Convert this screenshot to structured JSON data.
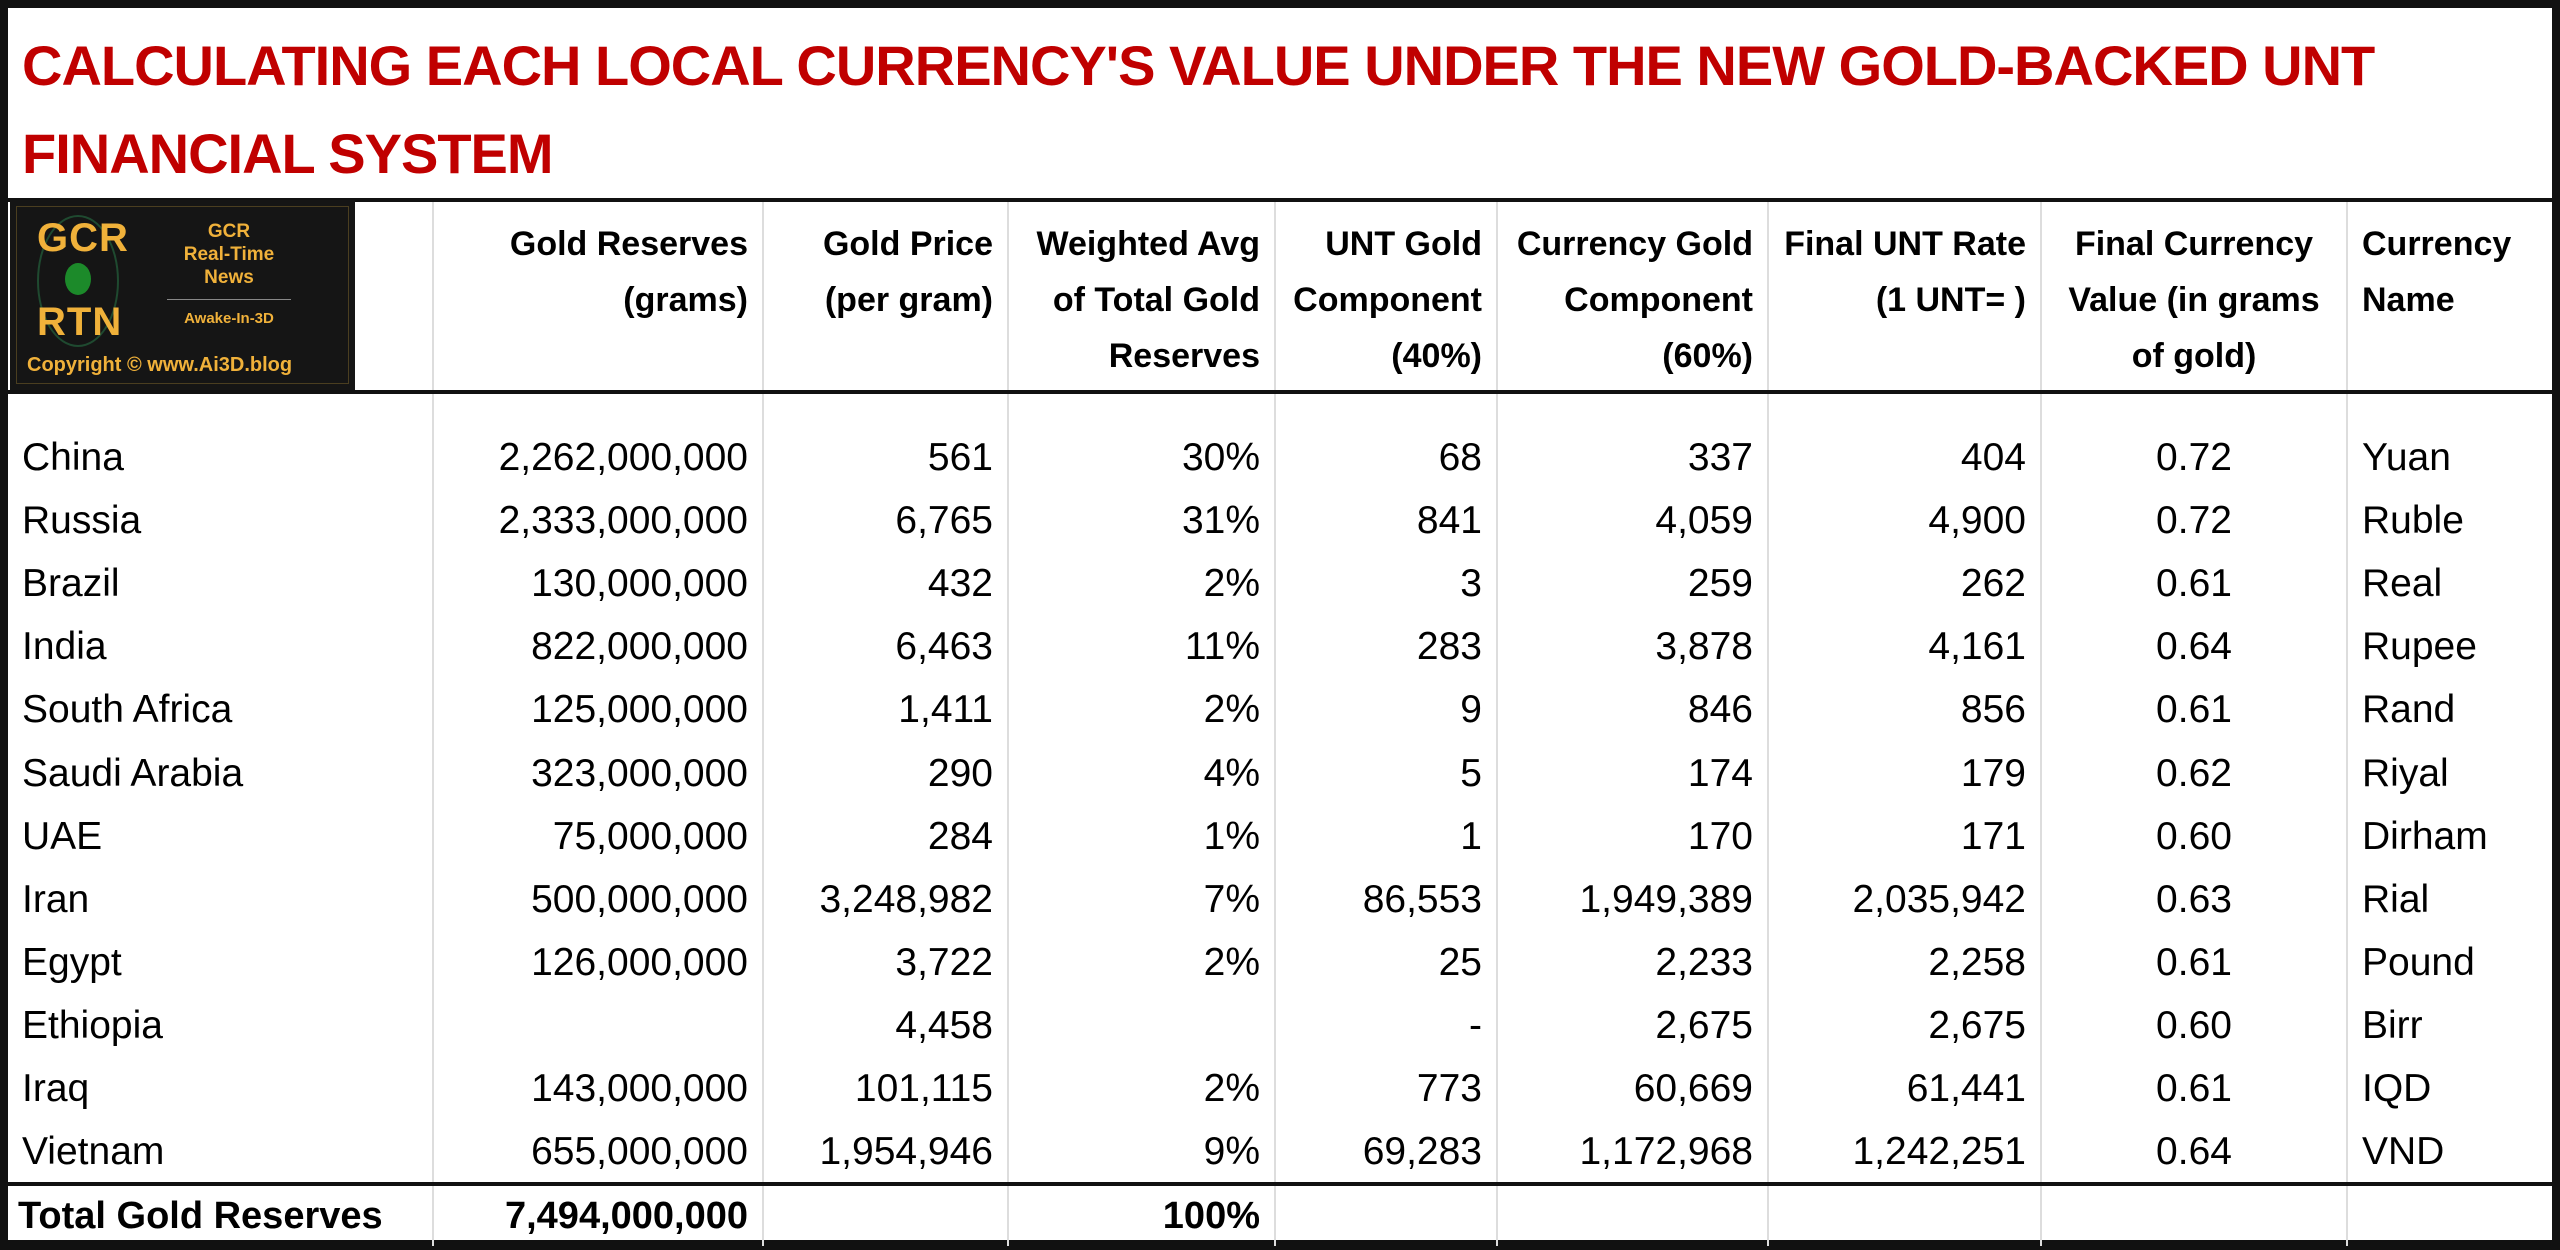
{
  "title": "CALCULATING EACH LOCAL CURRENCY'S VALUE UNDER THE NEW GOLD-BACKED UNT FINANCIAL SYSTEM",
  "logo": {
    "big_top": "GCR",
    "big_bottom": "RTN",
    "line1": "GCR",
    "line2": "Real-Time",
    "line3": "News",
    "tagline": "Awake-In-3D",
    "copyright": "Copyright © www.Ai3D.blog"
  },
  "headers": [
    "",
    "Gold Reserves (grams)",
    "Gold Price (per gram)",
    "Weighted Avg of Total Gold Reserves",
    "UNT Gold Component (40%)",
    "Currency Gold Component (60%)",
    "Final UNT Rate (1 UNT= )",
    "Final Currency Value (in grams of gold)",
    "Currency Name"
  ],
  "rows": [
    [
      "China",
      "2,262,000,000",
      "561",
      "30%",
      "68",
      "337",
      "404",
      "0.72",
      "Yuan"
    ],
    [
      "Russia",
      "2,333,000,000",
      "6,765",
      "31%",
      "841",
      "4,059",
      "4,900",
      "0.72",
      "Ruble"
    ],
    [
      "Brazil",
      "130,000,000",
      "432",
      "2%",
      "3",
      "259",
      "262",
      "0.61",
      "Real"
    ],
    [
      "India",
      "822,000,000",
      "6,463",
      "11%",
      "283",
      "3,878",
      "4,161",
      "0.64",
      "Rupee"
    ],
    [
      "South Africa",
      "125,000,000",
      "1,411",
      "2%",
      "9",
      "846",
      "856",
      "0.61",
      "Rand"
    ],
    [
      "Saudi Arabia",
      "323,000,000",
      "290",
      "4%",
      "5",
      "174",
      "179",
      "0.62",
      "Riyal"
    ],
    [
      "UAE",
      "75,000,000",
      "284",
      "1%",
      "1",
      "170",
      "171",
      "0.60",
      "Dirham"
    ],
    [
      "Iran",
      "500,000,000",
      "3,248,982",
      "7%",
      "86,553",
      "1,949,389",
      "2,035,942",
      "0.63",
      "Rial"
    ],
    [
      "Egypt",
      "126,000,000",
      "3,722",
      "2%",
      "25",
      "2,233",
      "2,258",
      "0.61",
      "Pound"
    ],
    [
      "Ethiopia",
      "",
      "4,458",
      "",
      "-",
      "2,675",
      "2,675",
      "0.60",
      "Birr"
    ],
    [
      "Iraq",
      "143,000,000",
      "101,115",
      "2%",
      "773",
      "60,669",
      "61,441",
      "0.61",
      "IQD"
    ],
    [
      "Vietnam",
      "655,000,000",
      "1,954,946",
      "9%",
      "69,283",
      "1,172,968",
      "1,242,251",
      "0.64",
      "VND"
    ]
  ],
  "total": {
    "label": "Total Gold Reserves",
    "reserves": "7,494,000,000",
    "weight": "100%"
  },
  "colors": {
    "title": "#c00000",
    "logo_gold": "#f0b13a",
    "logo_green": "#1c8a2a"
  }
}
